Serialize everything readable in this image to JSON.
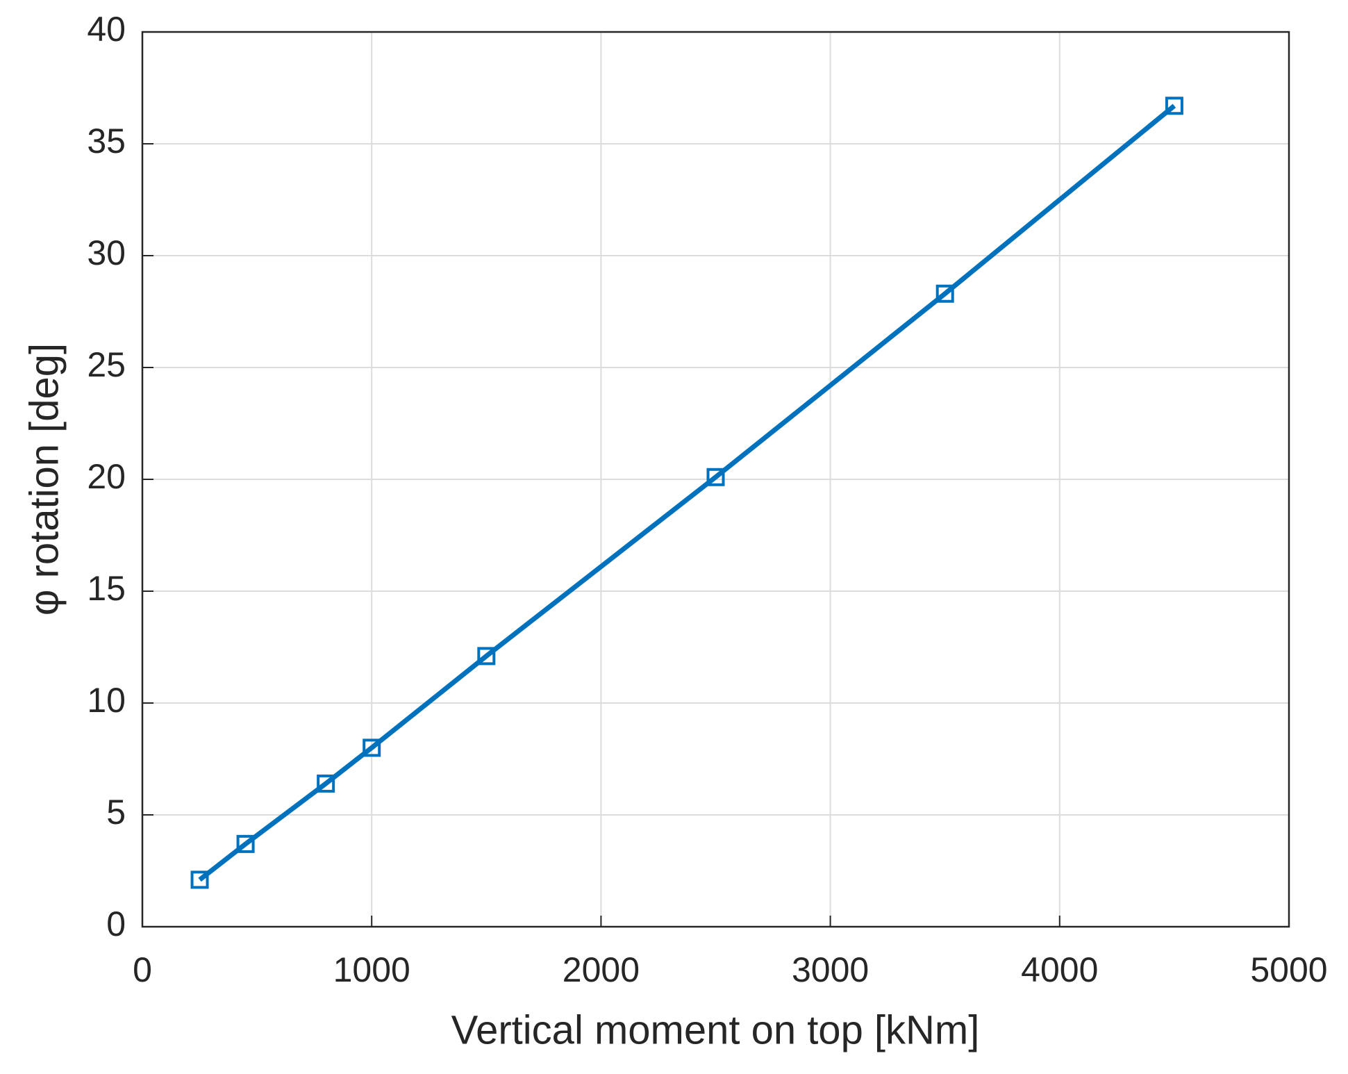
{
  "chart_data": {
    "type": "line",
    "x_label": "Vertical moment on top [kNm]",
    "y_label": "φ rotation [deg]",
    "x": [
      250,
      450,
      800,
      1000,
      1500,
      2500,
      3500,
      4500
    ],
    "series": [
      {
        "color": "#0072bd",
        "values": [
          2.1,
          3.7,
          6.4,
          8.0,
          12.1,
          20.1,
          28.3,
          36.7
        ]
      }
    ],
    "xlim": [
      0,
      5000
    ],
    "xticks": [
      0,
      1000,
      2000,
      3000,
      4000,
      5000
    ],
    "ylim": [
      0,
      40
    ],
    "yticks": [
      0,
      5,
      10,
      15,
      20,
      25,
      30,
      35,
      40
    ],
    "grid": true,
    "marker": "square"
  }
}
